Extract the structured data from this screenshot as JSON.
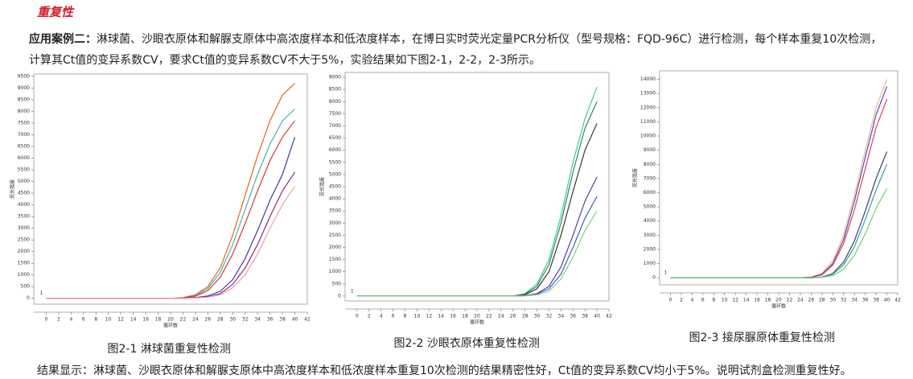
{
  "heading": "重复性",
  "paragraph": {
    "label": "应用案例二：",
    "text": "淋球菌、沙眼衣原体和解脲支原体中高浓度样本和低浓度样本，在博日实时荧光定量PCR分析仪（型号规格：FQD-96C）进行检测，每个样本重复10次检测，计算其Ct值的变异系数CV，要求Ct值的变异系数CV不大于5%，实验结果如下图2-1，2-2，2-3所示。"
  },
  "chart_data": [
    {
      "type": "line",
      "caption": "图2-1 淋球菌重复性检测",
      "xlabel": "循环数",
      "ylabel": "荧光强度",
      "annotation": "1",
      "xlim": [
        -2,
        42
      ],
      "ylim": [
        -250,
        9600
      ],
      "xticks": [
        0,
        2,
        4,
        6,
        8,
        10,
        12,
        14,
        16,
        18,
        20,
        22,
        24,
        26,
        28,
        30,
        32,
        34,
        36,
        38,
        40,
        42
      ],
      "yticks": [
        0,
        500,
        1000,
        1500,
        2000,
        2500,
        3000,
        3500,
        4000,
        4500,
        5000,
        5500,
        6000,
        6500,
        7000,
        7500,
        8000,
        8500,
        9000,
        9500
      ],
      "x": [
        0,
        2,
        4,
        6,
        8,
        10,
        12,
        14,
        16,
        18,
        20,
        22,
        24,
        26,
        28,
        30,
        32,
        34,
        36,
        38,
        40
      ],
      "series": [
        {
          "color": "#e8641b",
          "values": [
            0,
            0,
            0,
            0,
            0,
            0,
            0,
            0,
            0,
            0,
            0,
            30,
            150,
            500,
            1300,
            2700,
            4400,
            6100,
            7600,
            8700,
            9200
          ]
        },
        {
          "color": "#3cb9a0",
          "values": [
            0,
            0,
            0,
            0,
            0,
            0,
            0,
            0,
            0,
            0,
            0,
            20,
            120,
            420,
            1100,
            2300,
            3800,
            5300,
            6600,
            7600,
            8100
          ]
        },
        {
          "color": "#d9343a",
          "values": [
            0,
            0,
            0,
            0,
            0,
            0,
            0,
            0,
            0,
            0,
            0,
            15,
            90,
            330,
            900,
            1900,
            3200,
            4600,
            5900,
            6900,
            7600
          ]
        },
        {
          "color": "#3a3aa0",
          "values": [
            0,
            0,
            0,
            0,
            0,
            0,
            0,
            0,
            0,
            0,
            0,
            0,
            30,
            100,
            300,
            800,
            1700,
            2900,
            4200,
            5300,
            6900
          ]
        },
        {
          "color": "#8a2b8a",
          "values": [
            0,
            0,
            0,
            0,
            0,
            0,
            0,
            0,
            0,
            0,
            0,
            0,
            20,
            60,
            200,
            600,
            1300,
            2300,
            3500,
            4600,
            5400
          ]
        },
        {
          "color": "#f0a0b0",
          "values": [
            0,
            0,
            0,
            0,
            0,
            0,
            0,
            0,
            0,
            0,
            0,
            0,
            15,
            50,
            150,
            450,
            1000,
            1900,
            3000,
            4000,
            4800
          ]
        }
      ]
    },
    {
      "type": "line",
      "caption": "图2-2 沙眼衣原体重复性检测",
      "xlabel": "循环数",
      "ylabel": "荧光强度",
      "annotation": "1",
      "xlim": [
        -2,
        42
      ],
      "ylim": [
        -200,
        9200
      ],
      "xticks": [
        0,
        2,
        4,
        6,
        8,
        10,
        12,
        14,
        16,
        18,
        20,
        22,
        24,
        26,
        28,
        30,
        32,
        34,
        36,
        38,
        40,
        42
      ],
      "yticks": [
        0,
        500,
        1000,
        1500,
        2000,
        2500,
        3000,
        3500,
        4000,
        4500,
        5000,
        5500,
        6000,
        6500,
        7000,
        7500,
        8000,
        8500,
        9000
      ],
      "x": [
        0,
        2,
        4,
        6,
        8,
        10,
        12,
        14,
        16,
        18,
        20,
        22,
        24,
        26,
        28,
        30,
        32,
        34,
        36,
        38,
        40
      ],
      "series": [
        {
          "color": "#40c8a0",
          "values": [
            0,
            0,
            0,
            0,
            0,
            0,
            0,
            0,
            0,
            0,
            0,
            0,
            0,
            0,
            100,
            500,
            1500,
            3300,
            5500,
            7300,
            8600
          ]
        },
        {
          "color": "#2e8b57",
          "values": [
            0,
            0,
            0,
            0,
            0,
            0,
            0,
            0,
            0,
            0,
            0,
            0,
            0,
            0,
            80,
            400,
            1300,
            3000,
            5100,
            6900,
            8000
          ]
        },
        {
          "color": "#4a3030",
          "values": [
            0,
            0,
            0,
            0,
            0,
            0,
            0,
            0,
            0,
            0,
            0,
            0,
            0,
            0,
            50,
            300,
            1000,
            2500,
            4300,
            6000,
            7100
          ]
        },
        {
          "color": "#5a3a9a",
          "values": [
            0,
            0,
            0,
            0,
            0,
            0,
            0,
            0,
            0,
            0,
            0,
            0,
            0,
            0,
            20,
            100,
            400,
            1200,
            2500,
            3900,
            4900
          ]
        },
        {
          "color": "#4060c0",
          "values": [
            0,
            0,
            0,
            0,
            0,
            0,
            0,
            0,
            0,
            0,
            0,
            0,
            0,
            0,
            15,
            80,
            300,
            900,
            2000,
            3200,
            4100
          ]
        },
        {
          "color": "#80d080",
          "values": [
            0,
            0,
            0,
            0,
            0,
            0,
            0,
            0,
            0,
            0,
            0,
            0,
            0,
            0,
            10,
            50,
            200,
            700,
            1600,
            2700,
            3500
          ]
        }
      ]
    },
    {
      "type": "line",
      "caption": "图2-3 接尿脲原体重复性检测",
      "xlabel": "循环数",
      "ylabel": "荧光强度",
      "annotation": "1",
      "xlim": [
        -2,
        42
      ],
      "ylim": [
        -500,
        14600
      ],
      "xticks": [
        0,
        2,
        4,
        6,
        8,
        10,
        12,
        14,
        16,
        18,
        20,
        22,
        24,
        26,
        28,
        30,
        32,
        34,
        36,
        38,
        40,
        42
      ],
      "yticks": [
        0,
        1000,
        2000,
        3000,
        4000,
        5000,
        6000,
        7000,
        8000,
        9000,
        10000,
        11000,
        12000,
        13000,
        14000
      ],
      "x": [
        0,
        2,
        4,
        6,
        8,
        10,
        12,
        14,
        16,
        18,
        20,
        22,
        24,
        26,
        28,
        30,
        32,
        34,
        36,
        38,
        40
      ],
      "series": [
        {
          "color": "#e0c080",
          "values": [
            0,
            0,
            0,
            0,
            0,
            0,
            0,
            0,
            0,
            0,
            0,
            0,
            0,
            50,
            300,
            1200,
            3000,
            5800,
            9000,
            12000,
            14000
          ]
        },
        {
          "color": "#6040c0",
          "values": [
            0,
            0,
            0,
            0,
            0,
            0,
            0,
            0,
            0,
            0,
            0,
            0,
            0,
            40,
            250,
            1000,
            2700,
            5400,
            8500,
            11500,
            13500
          ]
        },
        {
          "color": "#e04060",
          "values": [
            0,
            0,
            0,
            0,
            0,
            0,
            0,
            0,
            0,
            0,
            0,
            0,
            0,
            30,
            200,
            900,
            2400,
            4800,
            7700,
            10600,
            12600
          ]
        },
        {
          "color": "#404060",
          "values": [
            0,
            0,
            0,
            0,
            0,
            0,
            0,
            0,
            0,
            0,
            0,
            0,
            0,
            0,
            50,
            300,
            1100,
            2600,
            4700,
            7000,
            8900
          ]
        },
        {
          "color": "#30a0a0",
          "values": [
            0,
            0,
            0,
            0,
            0,
            0,
            0,
            0,
            0,
            0,
            0,
            0,
            0,
            0,
            40,
            250,
            900,
            2200,
            4100,
            6200,
            8000
          ]
        },
        {
          "color": "#70d070",
          "values": [
            0,
            0,
            0,
            0,
            0,
            0,
            0,
            0,
            0,
            0,
            0,
            0,
            0,
            0,
            30,
            150,
            600,
            1600,
            3100,
            4900,
            6300
          ]
        }
      ]
    }
  ],
  "conclusion": "结果显示：淋球菌、沙眼衣原体和解脲支原体中高浓度样本和低浓度样本重复10次检测的结果精密性好，Ct值的变异系数CV均小于5%。说明试剂盒检测重复性好。"
}
